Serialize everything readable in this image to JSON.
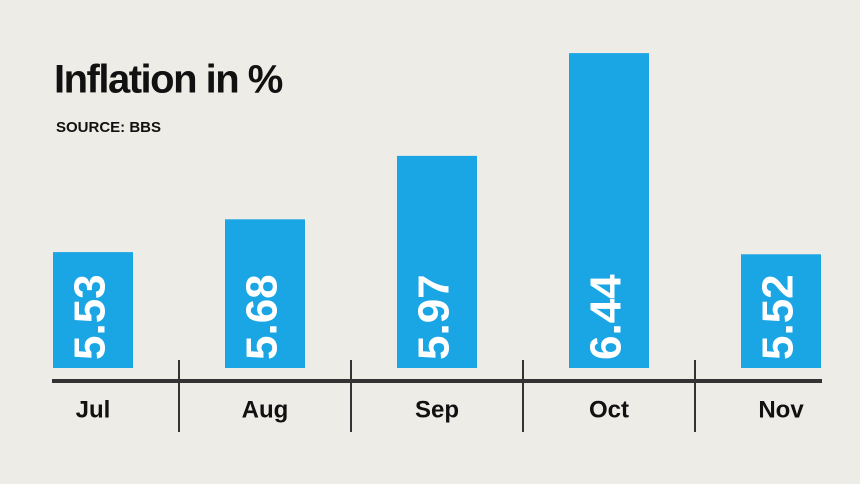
{
  "chart_data": {
    "type": "bar",
    "title": "Inflation in %",
    "subtitle": "SOURCE: BBS",
    "categories": [
      "Jul",
      "Aug",
      "Sep",
      "Oct",
      "Nov"
    ],
    "values": [
      5.53,
      5.68,
      5.97,
      6.44,
      5.52
    ],
    "color": "#1aa6e4",
    "ylim": [
      5,
      6.5
    ]
  }
}
